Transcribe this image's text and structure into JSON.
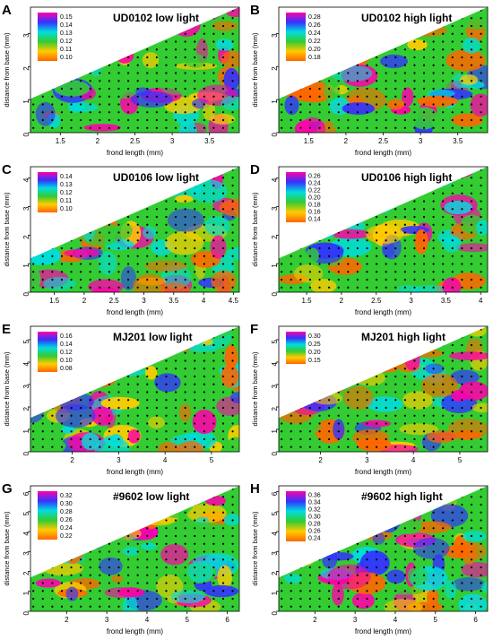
{
  "figure": {
    "colors": {
      "background": "#ffffff",
      "axis": "#000000",
      "point": "#000000"
    }
  },
  "chart_data": [
    {
      "type": "heatmap",
      "panel_letter": "A",
      "title": "UD0102 low light",
      "xlabel": "frond length (mm)",
      "ylabel": "distance from base (mm)",
      "xticks": [
        1.5,
        2.0,
        2.5,
        3.0,
        3.5
      ],
      "yticks": [
        0,
        1,
        2,
        3
      ],
      "xlim": [
        1.1,
        3.9
      ],
      "ylim": [
        0,
        3.8
      ],
      "legend": {
        "placement": "top-left",
        "values": [
          0.15,
          0.14,
          0.13,
          0.12,
          0.11,
          0.1
        ]
      },
      "colorscale": [
        "#ff6600",
        "#ffcc00",
        "#33cc33",
        "#00dddd",
        "#3333ff",
        "#ff00aa"
      ]
    },
    {
      "type": "heatmap",
      "panel_letter": "B",
      "title": "UD0102 high light",
      "xlabel": "frond length (mm)",
      "ylabel": "distance from base (mm)",
      "xticks": [
        1.5,
        2.0,
        2.5,
        3.0,
        3.5
      ],
      "yticks": [
        0,
        1,
        2,
        3
      ],
      "xlim": [
        1.1,
        3.9
      ],
      "ylim": [
        0,
        3.8
      ],
      "legend": {
        "placement": "top-left",
        "values": [
          0.28,
          0.26,
          0.24,
          0.22,
          0.2,
          0.18
        ]
      },
      "colorscale": [
        "#ff6600",
        "#ffcc00",
        "#33cc33",
        "#00dddd",
        "#3333ff",
        "#ff00aa"
      ]
    },
    {
      "type": "heatmap",
      "panel_letter": "C",
      "title": "UD0106 low light",
      "xlabel": "frond length (mm)",
      "ylabel": "distance from base (mm)",
      "xticks": [
        1.5,
        2.0,
        2.5,
        3.0,
        3.5,
        4.0,
        4.5
      ],
      "yticks": [
        0,
        1,
        2,
        3,
        4
      ],
      "xlim": [
        1.1,
        4.6
      ],
      "ylim": [
        0,
        4.4
      ],
      "legend": {
        "placement": "top-left",
        "values": [
          0.14,
          0.13,
          0.12,
          0.11,
          0.1
        ]
      },
      "colorscale": [
        "#ff6600",
        "#ffcc00",
        "#33cc33",
        "#00dddd",
        "#3333ff",
        "#ff00aa"
      ]
    },
    {
      "type": "heatmap",
      "panel_letter": "D",
      "title": "UD0106 high light",
      "xlabel": "frond length (mm)",
      "ylabel": "distance from base (mm)",
      "xticks": [
        1.5,
        2.0,
        2.5,
        3.0,
        3.5,
        4.0
      ],
      "yticks": [
        0,
        1,
        2,
        3,
        4
      ],
      "xlim": [
        1.1,
        4.1
      ],
      "ylim": [
        0,
        4.4
      ],
      "legend": {
        "placement": "top-left",
        "values": [
          0.26,
          0.24,
          0.22,
          0.2,
          0.18,
          0.16,
          0.14
        ]
      },
      "colorscale": [
        "#ff6600",
        "#ffcc00",
        "#33cc33",
        "#00dddd",
        "#3333ff",
        "#ff00aa"
      ]
    },
    {
      "type": "heatmap",
      "panel_letter": "E",
      "title": "MJ201 low light",
      "xlabel": "frond length (mm)",
      "ylabel": "distance from base (mm)",
      "xticks": [
        2,
        3,
        4,
        5
      ],
      "yticks": [
        0,
        1,
        2,
        3,
        4,
        5
      ],
      "xlim": [
        1.1,
        5.6
      ],
      "ylim": [
        0,
        5.6
      ],
      "legend": {
        "placement": "top-left",
        "values": [
          0.16,
          0.14,
          0.12,
          0.1,
          0.08
        ]
      },
      "colorscale": [
        "#ff6600",
        "#ffcc00",
        "#33cc33",
        "#00dddd",
        "#3333ff",
        "#ff00aa"
      ]
    },
    {
      "type": "heatmap",
      "panel_letter": "F",
      "title": "MJ201 high light",
      "xlabel": "frond length (mm)",
      "ylabel": "distance from base (mm)",
      "xticks": [
        2,
        3,
        4,
        5
      ],
      "yticks": [
        0,
        1,
        2,
        3,
        4,
        5
      ],
      "xlim": [
        1.1,
        5.6
      ],
      "ylim": [
        0,
        5.6
      ],
      "legend": {
        "placement": "top-left",
        "values": [
          0.3,
          0.25,
          0.2,
          0.15
        ]
      },
      "colorscale": [
        "#ff6600",
        "#ffcc00",
        "#33cc33",
        "#00dddd",
        "#3333ff",
        "#ff00aa"
      ]
    },
    {
      "type": "heatmap",
      "panel_letter": "G",
      "title": "#9602 low light",
      "xlabel": "frond length (mm)",
      "ylabel": "distance from base (mm)",
      "xticks": [
        2,
        3,
        4,
        5,
        6
      ],
      "yticks": [
        0,
        1,
        2,
        3,
        4,
        5,
        6
      ],
      "xlim": [
        1.1,
        6.3
      ],
      "ylim": [
        0,
        6.3
      ],
      "legend": {
        "placement": "top-left",
        "values": [
          0.32,
          0.3,
          0.28,
          0.26,
          0.24,
          0.22
        ]
      },
      "colorscale": [
        "#ff6600",
        "#ffcc00",
        "#33cc33",
        "#00dddd",
        "#3333ff",
        "#ff00aa"
      ]
    },
    {
      "type": "heatmap",
      "panel_letter": "H",
      "title": "#9602 high light",
      "xlabel": "frond length (mm)",
      "ylabel": "distance from base (mm)",
      "xticks": [
        2,
        3,
        4,
        5,
        6
      ],
      "yticks": [
        0,
        1,
        2,
        3,
        4,
        5,
        6
      ],
      "xlim": [
        1.1,
        6.3
      ],
      "ylim": [
        0,
        6.3
      ],
      "legend": {
        "placement": "top-left",
        "values": [
          0.36,
          0.34,
          0.32,
          0.3,
          0.28,
          0.26,
          0.24
        ]
      },
      "colorscale": [
        "#ff6600",
        "#ffcc00",
        "#33cc33",
        "#00dddd",
        "#3333ff",
        "#ff00aa"
      ]
    }
  ]
}
